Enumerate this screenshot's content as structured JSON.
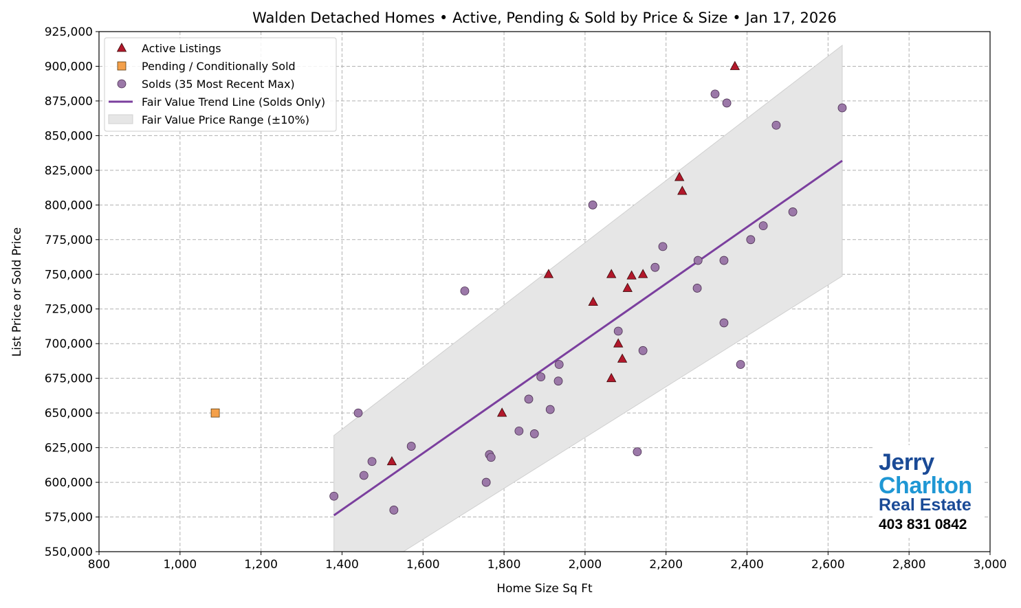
{
  "chart_data": {
    "type": "scatter",
    "title": "Walden Detached Homes • Active, Pending & Sold by Price & Size • Jan 17, 2026",
    "xlabel": "Home Size Sq Ft",
    "ylabel": "List Price or Sold Price",
    "xlim": [
      800,
      3000
    ],
    "ylim": [
      550000,
      925000
    ],
    "x_ticks": [
      800,
      1000,
      1200,
      1400,
      1600,
      1800,
      2000,
      2200,
      2400,
      2600,
      2800,
      3000
    ],
    "x_tick_labels": [
      "800",
      "1,000",
      "1,200",
      "1,400",
      "1,600",
      "1,800",
      "2,000",
      "2,200",
      "2,400",
      "2,600",
      "2,800",
      "3,000"
    ],
    "y_ticks": [
      550000,
      575000,
      600000,
      625000,
      650000,
      675000,
      700000,
      725000,
      750000,
      775000,
      800000,
      825000,
      850000,
      875000,
      900000,
      925000
    ],
    "y_tick_labels": [
      "550,000",
      "575,000",
      "600,000",
      "625,000",
      "650,000",
      "675,000",
      "700,000",
      "725,000",
      "750,000",
      "775,000",
      "800,000",
      "825,000",
      "850,000",
      "875,000",
      "900,000",
      "925,000"
    ],
    "grid": true,
    "legend_position": "top-left",
    "series": [
      {
        "name": "Active Listings",
        "marker": "triangle",
        "color": "#b2182b",
        "points": [
          [
            1523,
            615000
          ],
          [
            1795,
            650000
          ],
          [
            1910,
            750000
          ],
          [
            2020,
            730000
          ],
          [
            2065,
            750000
          ],
          [
            2065,
            675000
          ],
          [
            2082,
            700000
          ],
          [
            2092,
            689000
          ],
          [
            2105,
            740000
          ],
          [
            2115,
            749000
          ],
          [
            2143,
            750000
          ],
          [
            2233,
            820000
          ],
          [
            2240,
            810000
          ],
          [
            2370,
            900000
          ]
        ]
      },
      {
        "name": "Pending / Conditionally Sold",
        "marker": "square",
        "color": "#f4a04a",
        "points": [
          [
            1087,
            650000
          ]
        ]
      },
      {
        "name": "Solds (35 Most Recent Max)",
        "marker": "circle",
        "color": "#9b78a8",
        "points": [
          [
            1380,
            590000
          ],
          [
            1440,
            650000
          ],
          [
            1454,
            605000
          ],
          [
            1474,
            615000
          ],
          [
            1528,
            580000
          ],
          [
            1571,
            626000
          ],
          [
            1703,
            738000
          ],
          [
            1756,
            600000
          ],
          [
            1764,
            620000
          ],
          [
            1768,
            618000
          ],
          [
            1837,
            637000
          ],
          [
            1861,
            660000
          ],
          [
            1875,
            635000
          ],
          [
            1891,
            676000
          ],
          [
            1914,
            652500
          ],
          [
            1934,
            673000
          ],
          [
            1936,
            685000
          ],
          [
            2019,
            800000
          ],
          [
            2082,
            709000
          ],
          [
            2129,
            622000
          ],
          [
            2143,
            695000
          ],
          [
            2173,
            755000
          ],
          [
            2192,
            770000
          ],
          [
            2277,
            740000
          ],
          [
            2279,
            760000
          ],
          [
            2321,
            880000
          ],
          [
            2343,
            715000
          ],
          [
            2343,
            760000
          ],
          [
            2350,
            873500
          ],
          [
            2384,
            685000
          ],
          [
            2409,
            775000
          ],
          [
            2440,
            785000
          ],
          [
            2472,
            857500
          ],
          [
            2513,
            795000
          ],
          [
            2635,
            870000
          ]
        ]
      },
      {
        "name": "Fair Value Trend Line (Solds Only)",
        "type": "line",
        "color": "#7b3f9e",
        "x": [
          1380,
          2635
        ],
        "y": [
          576200,
          831900
        ]
      },
      {
        "name": "Fair Value Price Range (±10%)",
        "type": "band",
        "color": "#e6e6e6",
        "x": [
          1380,
          2635
        ],
        "upper": [
          633800,
          915100
        ],
        "lower": [
          518600,
          748700
        ]
      }
    ]
  },
  "logo": {
    "line1": "Jerry",
    "line2": "Charlton",
    "line3": "Real Estate",
    "phone": "403 831 0842"
  }
}
